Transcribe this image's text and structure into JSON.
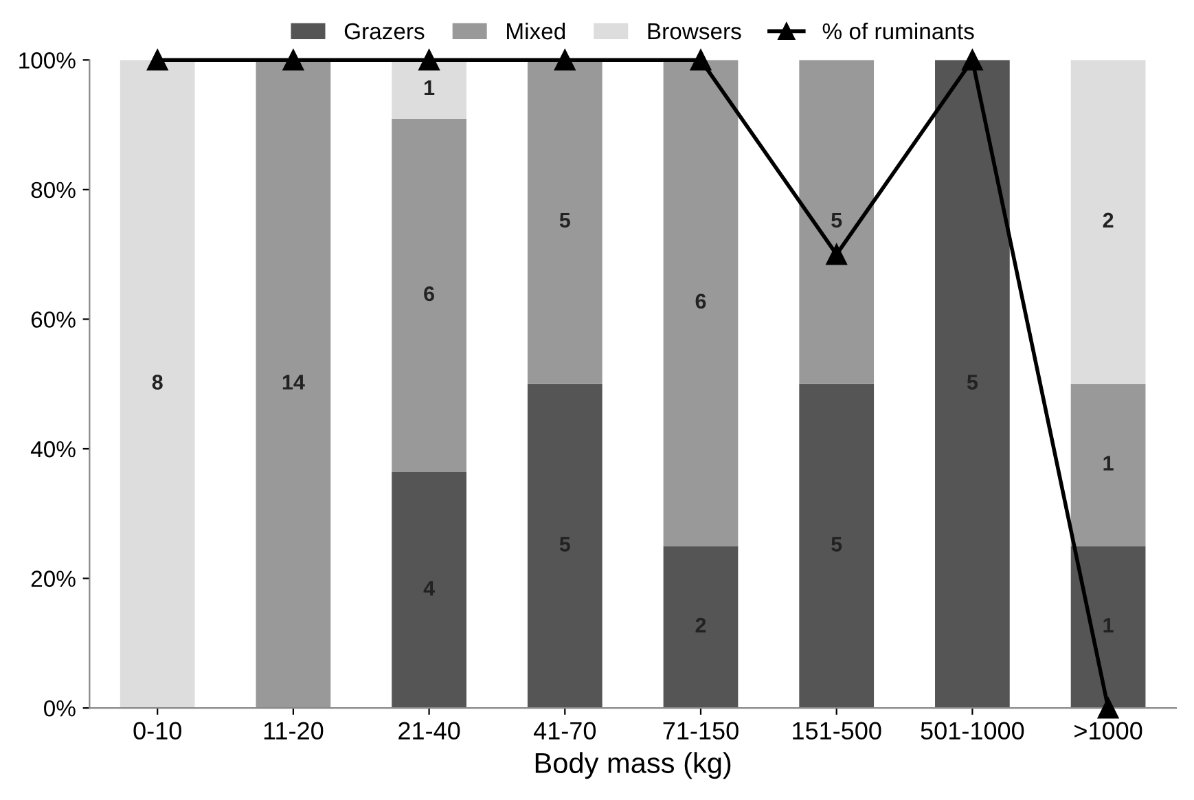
{
  "chart_data": {
    "type": "bar",
    "stacked": true,
    "xlabel": "Body mass (kg)",
    "categories": [
      "0-10",
      "11-20",
      "21-40",
      "41-70",
      "71-150",
      "151-500",
      "501-1000",
      ">1000"
    ],
    "series": [
      {
        "name": "Grazers",
        "color": "#555555",
        "values": [
          0,
          0,
          36.4,
          50,
          25,
          50,
          100,
          25
        ]
      },
      {
        "name": "Mixed",
        "color": "#999999",
        "values": [
          0,
          100,
          54.5,
          50,
          75,
          50,
          0,
          25
        ]
      },
      {
        "name": "Browsers",
        "color": "#dddddd",
        "values": [
          100,
          0,
          9.1,
          0,
          0,
          0,
          0,
          50
        ]
      },
      {
        "name": "% of ruminants",
        "type": "line",
        "color": "#000000",
        "marker": "triangle",
        "values": [
          100,
          100,
          100,
          100,
          100,
          70,
          100,
          0
        ]
      }
    ],
    "annotations": [
      "4",
      "5",
      "2",
      "5",
      "5",
      "1",
      "14",
      "6",
      "5",
      "6",
      "5",
      "1",
      "8",
      "1",
      "2"
    ],
    "ylim": [
      0,
      100
    ],
    "yticks": [
      {
        "value": 0,
        "label": "0%"
      },
      {
        "value": 20,
        "label": "20%"
      },
      {
        "value": 40,
        "label": "40%"
      },
      {
        "value": 60,
        "label": "60%"
      },
      {
        "value": 80,
        "label": "80%"
      },
      {
        "value": 100,
        "label": "100%"
      }
    ],
    "grid": false,
    "legend": "top"
  }
}
